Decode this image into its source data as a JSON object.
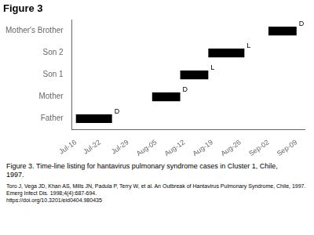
{
  "chart_data": {
    "type": "bar",
    "orientation": "horizontal",
    "title": "Figure 3",
    "caption": "Figure 3. Time-line listing for hantavirus pulmonary syndrome cases in Cluster 1, Chile,\n1997.",
    "citation": "Toro J, Vega JD, Khan AS, Mills JN, Padula P, Terry W, et al. An Outbreak of Hantavirus Pulmonary Syndrome, Chile, 1997. Emerg Infect Dis. 1998;4(4):687-694.\nhttps://doi.org/10.3201/eid0404.980435",
    "categories": [
      "Father",
      "Mother",
      "Son 1",
      "Son 2",
      "Mother's Brother"
    ],
    "values": [
      [
        0,
        9
      ],
      [
        19,
        26
      ],
      [
        26,
        33
      ],
      [
        33,
        42
      ],
      [
        48,
        55
      ]
    ],
    "color": "#000000",
    "annotations": [
      {
        "text": "D",
        "x": 9,
        "category": "Father"
      },
      {
        "text": "D",
        "x": 26,
        "category": "Mother"
      },
      {
        "text": "L",
        "x": 33,
        "category": "Son 1"
      },
      {
        "text": "L",
        "x": 42,
        "category": "Son 2"
      },
      {
        "text": "D",
        "x": 55,
        "category": "Mother's Brother"
      }
    ],
    "xlim": [
      -1,
      57
    ],
    "xticks": [
      {
        "value": 0,
        "label": "Jul-16"
      },
      {
        "value": 6,
        "label": "Jul-22"
      },
      {
        "value": 13,
        "label": "Jul-29"
      },
      {
        "value": 20,
        "label": "Aug-05"
      },
      {
        "value": 27,
        "label": "Aug-12"
      },
      {
        "value": 34,
        "label": "Aug-19"
      },
      {
        "value": 41,
        "label": "Aug-26"
      },
      {
        "value": 48,
        "label": "Sep-02"
      },
      {
        "value": 55,
        "label": "Sep-09"
      }
    ],
    "grid": false
  }
}
